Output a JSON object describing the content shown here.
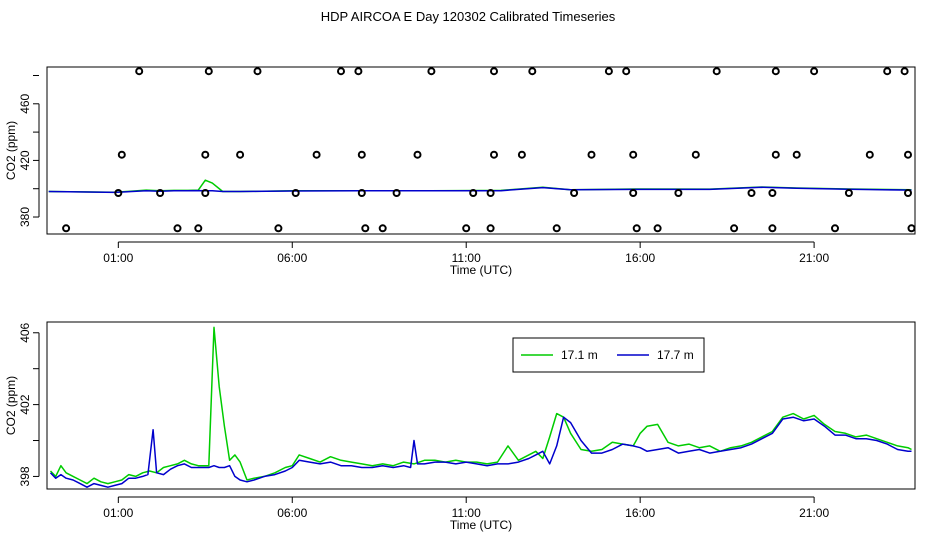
{
  "page_title": "HDP AIRCOA E  Day 120302  Calibrated Timeseries",
  "colors": {
    "green": "#00cc00",
    "blue": "#0000cc",
    "points": "#000000"
  },
  "chart_data": [
    {
      "type": "line+scatter",
      "title": "",
      "xlabel": "Time (UTC)",
      "ylabel": "CO2 (ppm)",
      "x_unit": "hours UTC",
      "xlim": [
        -1.05,
        23.9
      ],
      "ylim": [
        368,
        486
      ],
      "xticks": [
        1,
        6,
        11,
        16,
        21
      ],
      "xtick_labels": [
        "01:00",
        "06:00",
        "11:00",
        "16:00",
        "21:00"
      ],
      "yticks": [
        380,
        420,
        460
      ],
      "ytick_labels": [
        "380",
        "420",
        "460"
      ],
      "series": [
        {
          "color": "green",
          "x": [
            -1.0,
            0.9,
            1.8,
            2.2,
            2.6,
            3.0,
            3.3,
            3.5,
            3.7,
            4.0,
            4.5,
            6,
            8,
            10,
            12,
            13.2,
            14,
            16,
            18,
            19.5,
            20.5,
            22,
            23.8
          ],
          "y": [
            398,
            397.5,
            399,
            398.5,
            398.8,
            398.8,
            399,
            406,
            404,
            398,
            398,
            398.5,
            398.6,
            398.6,
            398.8,
            401,
            399.3,
            399.8,
            399.7,
            401.2,
            400.5,
            399.8,
            399.2
          ]
        },
        {
          "color": "blue",
          "x": [
            -1.0,
            0.9,
            1.8,
            2.2,
            2.6,
            3.0,
            3.3,
            3.5,
            3.7,
            4.0,
            4.5,
            6,
            8,
            10,
            12,
            13.2,
            14,
            16,
            18,
            19.5,
            20.5,
            22,
            23.8
          ],
          "y": [
            398,
            397.4,
            398.5,
            398.2,
            398.6,
            398.6,
            398.7,
            398.6,
            398.5,
            398,
            398,
            398.4,
            398.5,
            398.5,
            398.6,
            400.8,
            399.2,
            399.5,
            399.5,
            401,
            400.3,
            399.6,
            399
          ]
        }
      ],
      "points": {
        "x": [
          -0.5,
          1.0,
          1.6,
          1.1,
          2.7,
          2.2,
          3.3,
          3.5,
          3.5,
          3.6,
          4.5,
          5.0,
          5.6,
          6.1,
          6.7,
          7.4,
          7.9,
          8.0,
          8.0,
          8.1,
          8.6,
          9.0,
          9.6,
          10.0,
          11.0,
          11.2,
          11.7,
          11.7,
          11.8,
          11.8,
          12.6,
          12.9,
          13.6,
          14.1,
          14.6,
          15.1,
          15.6,
          15.8,
          15.8,
          15.9,
          16.5,
          17.1,
          17.6,
          18.2,
          18.7,
          19.2,
          19.8,
          19.8,
          19.9,
          19.9,
          20.5,
          21.0,
          21.6,
          22.0,
          22.6,
          23.1,
          23.6,
          23.7,
          23.7,
          23.8
        ],
        "y": [
          372,
          397,
          483,
          424,
          372,
          397,
          372,
          397,
          424,
          483,
          424,
          483,
          372,
          397,
          424,
          483,
          483,
          424,
          397,
          372,
          372,
          397,
          424,
          483,
          372,
          397,
          372,
          397,
          424,
          483,
          424,
          483,
          372,
          397,
          424,
          483,
          483,
          424,
          397,
          372,
          372,
          397,
          424,
          483,
          372,
          397,
          372,
          397,
          424,
          483,
          424,
          483,
          372,
          397,
          424,
          483,
          483,
          424,
          397,
          372
        ]
      }
    },
    {
      "type": "line",
      "title": "",
      "xlabel": "Time (UTC)",
      "ylabel": "CO2 (ppm)",
      "x_unit": "hours UTC",
      "xlim": [
        -1.05,
        23.9
      ],
      "ylim": [
        397.3,
        406.6
      ],
      "xticks": [
        1,
        6,
        11,
        16,
        21
      ],
      "xtick_labels": [
        "01:00",
        "06:00",
        "11:00",
        "16:00",
        "21:00"
      ],
      "yticks": [
        398,
        402,
        406
      ],
      "ytick_labels": [
        "398",
        "402",
        "406"
      ],
      "legend": {
        "placement": "top-right",
        "entries": [
          "17.1 m",
          "17.7 m"
        ]
      },
      "series": [
        {
          "name": "17.1 m",
          "color": "green",
          "x": [
            -0.95,
            -0.8,
            -0.65,
            -0.5,
            -0.3,
            -0.1,
            0.1,
            0.3,
            0.5,
            0.7,
            0.9,
            1.1,
            1.3,
            1.5,
            1.7,
            1.9,
            2.1,
            2.3,
            2.5,
            2.7,
            2.9,
            3.1,
            3.3,
            3.45,
            3.6,
            3.75,
            3.9,
            4.05,
            4.2,
            4.35,
            4.5,
            4.7,
            4.9,
            5.2,
            5.5,
            5.8,
            6.0,
            6.2,
            6.5,
            6.8,
            7.1,
            7.4,
            7.7,
            8.0,
            8.3,
            8.6,
            8.9,
            9.2,
            9.5,
            9.8,
            10.1,
            10.4,
            10.7,
            11.0,
            11.3,
            11.6,
            11.9,
            12.2,
            12.5,
            12.8,
            13.0,
            13.2,
            13.4,
            13.6,
            13.8,
            14.0,
            14.3,
            14.6,
            14.9,
            15.2,
            15.5,
            15.8,
            16.0,
            16.2,
            16.5,
            16.8,
            17.1,
            17.4,
            17.7,
            18.0,
            18.3,
            18.6,
            18.9,
            19.2,
            19.5,
            19.8,
            20.1,
            20.4,
            20.7,
            21.0,
            21.3,
            21.6,
            21.9,
            22.2,
            22.5,
            22.8,
            23.1,
            23.4,
            23.7,
            23.8
          ],
          "y": [
            398.3,
            398.0,
            398.6,
            398.2,
            398.0,
            397.8,
            397.6,
            397.9,
            397.7,
            397.6,
            397.7,
            397.8,
            398.1,
            398.0,
            398.2,
            398.3,
            398.2,
            398.5,
            398.6,
            398.7,
            398.9,
            398.7,
            398.6,
            398.6,
            398.6,
            406.3,
            403.0,
            400.8,
            398.9,
            399.2,
            398.8,
            397.8,
            397.9,
            398.0,
            398.2,
            398.5,
            398.6,
            399.2,
            399.0,
            398.8,
            399.1,
            398.9,
            398.8,
            398.7,
            398.6,
            398.7,
            398.6,
            398.8,
            398.7,
            398.9,
            398.9,
            398.8,
            398.9,
            398.8,
            398.8,
            398.7,
            398.8,
            399.7,
            398.9,
            399.2,
            399.4,
            399.0,
            400.2,
            401.5,
            401.3,
            400.4,
            399.5,
            399.4,
            399.5,
            399.9,
            399.8,
            399.7,
            400.4,
            400.8,
            400.9,
            399.9,
            399.7,
            399.8,
            399.6,
            399.7,
            399.4,
            399.6,
            399.7,
            399.9,
            400.2,
            400.5,
            401.3,
            401.5,
            401.2,
            401.4,
            400.9,
            400.5,
            400.4,
            400.2,
            400.3,
            400.1,
            399.9,
            399.7,
            399.6,
            399.5
          ]
        },
        {
          "name": "17.7 m",
          "color": "blue",
          "x": [
            -0.95,
            -0.8,
            -0.65,
            -0.5,
            -0.3,
            -0.1,
            0.1,
            0.3,
            0.5,
            0.7,
            0.9,
            1.1,
            1.3,
            1.5,
            1.7,
            1.85,
            2.0,
            2.1,
            2.3,
            2.5,
            2.7,
            2.9,
            3.1,
            3.3,
            3.45,
            3.6,
            3.75,
            3.9,
            4.05,
            4.2,
            4.35,
            4.5,
            4.7,
            4.9,
            5.2,
            5.5,
            5.8,
            6.0,
            6.2,
            6.5,
            6.8,
            7.1,
            7.4,
            7.7,
            8.0,
            8.3,
            8.6,
            8.9,
            9.2,
            9.4,
            9.5,
            9.6,
            9.8,
            10.1,
            10.4,
            10.7,
            11.0,
            11.3,
            11.6,
            11.9,
            12.2,
            12.5,
            12.8,
            13.0,
            13.2,
            13.4,
            13.6,
            13.8,
            14.0,
            14.3,
            14.6,
            14.9,
            15.2,
            15.5,
            15.8,
            16.0,
            16.2,
            16.5,
            16.8,
            17.1,
            17.4,
            17.7,
            18.0,
            18.3,
            18.6,
            18.9,
            19.2,
            19.5,
            19.8,
            20.1,
            20.4,
            20.7,
            21.0,
            21.3,
            21.6,
            21.9,
            22.2,
            22.5,
            22.8,
            23.1,
            23.4,
            23.7,
            23.8
          ],
          "y": [
            398.2,
            397.9,
            398.1,
            397.9,
            397.8,
            397.6,
            397.4,
            397.6,
            397.5,
            397.4,
            397.5,
            397.6,
            397.9,
            397.9,
            398.0,
            398.1,
            400.6,
            398.2,
            398.1,
            398.4,
            398.6,
            398.7,
            398.5,
            398.5,
            398.5,
            398.5,
            398.6,
            398.5,
            398.5,
            398.6,
            398.0,
            397.8,
            397.7,
            397.8,
            398.0,
            398.1,
            398.3,
            398.5,
            398.9,
            398.8,
            398.7,
            398.8,
            398.6,
            398.6,
            398.5,
            398.5,
            398.6,
            398.5,
            398.6,
            398.5,
            400.0,
            398.7,
            398.7,
            398.8,
            398.8,
            398.7,
            398.8,
            398.7,
            398.6,
            398.7,
            398.7,
            398.8,
            399.0,
            399.2,
            399.4,
            398.7,
            399.7,
            401.3,
            401.0,
            400.0,
            399.3,
            399.3,
            399.5,
            399.8,
            399.7,
            399.6,
            399.4,
            399.5,
            399.6,
            399.3,
            399.4,
            399.5,
            399.3,
            399.4,
            399.5,
            399.6,
            399.8,
            400.1,
            400.4,
            401.2,
            401.3,
            401.1,
            401.2,
            400.8,
            400.3,
            400.3,
            400.1,
            400.1,
            400.0,
            399.8,
            399.5,
            399.4,
            399.4
          ]
        }
      ]
    }
  ]
}
